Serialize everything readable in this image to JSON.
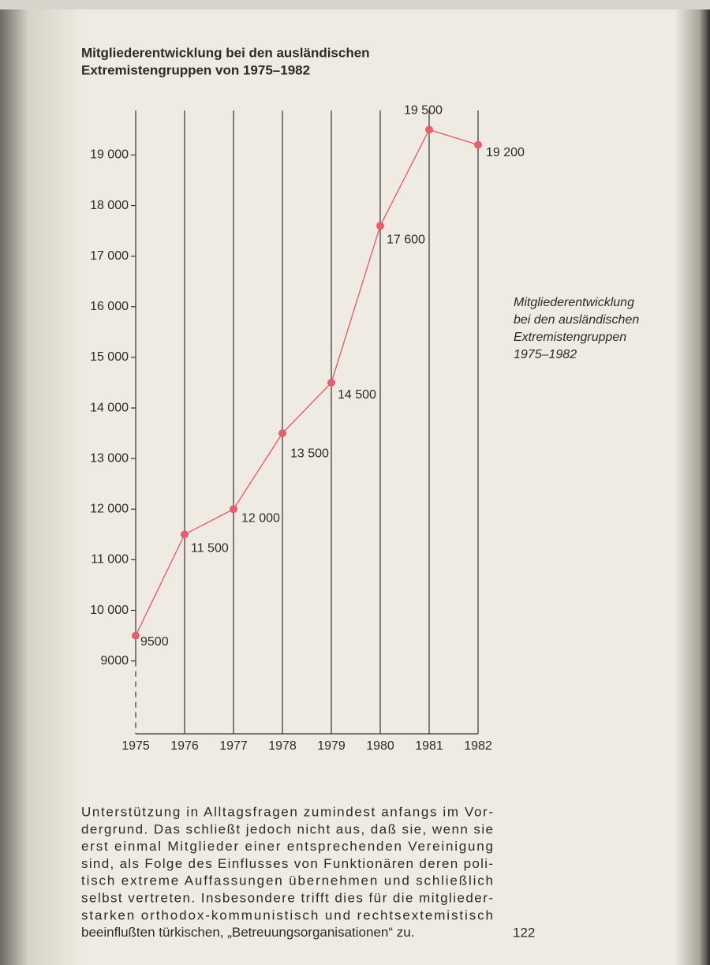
{
  "chart_data": {
    "type": "line",
    "title": [
      "Mitgliederentwicklung bei den ausländischen",
      "Extremistengruppen von 1975–1982"
    ],
    "x": [
      1975,
      1976,
      1977,
      1978,
      1979,
      1980,
      1981,
      1982
    ],
    "xlim": [
      1975,
      1982
    ],
    "values": [
      9500,
      11500,
      12000,
      13500,
      14500,
      17600,
      19500,
      19200
    ],
    "value_labels": [
      "9500",
      "11 500",
      "12 000",
      "13 500",
      "14 500",
      "17 600",
      "19 500",
      "19 200"
    ],
    "color": "#e2606e",
    "ylim": [
      7560,
      19880
    ],
    "yticks": [
      9000,
      {
        "value": 10000,
        "label": "10 000"
      },
      {
        "value": 11000,
        "label": "11 000"
      },
      {
        "value": 12000,
        "label": "12 000"
      },
      {
        "value": 13000,
        "label": "13 000"
      },
      {
        "value": 14000,
        "label": "14 000"
      },
      {
        "value": 15000,
        "label": "15 000"
      },
      {
        "value": 16000,
        "label": "16 000"
      },
      {
        "value": 17000,
        "label": "17 000"
      },
      {
        "value": 18000,
        "label": "18 000"
      },
      {
        "value": 19000,
        "label": "19 000"
      }
    ],
    "grid": true
  },
  "caption": [
    "Mitgliederentwicklung",
    "bei den ausländischen",
    "Extremistengruppen",
    "1975–1982"
  ],
  "body_text": [
    "Unterstützung in Alltagsfragen zumindest anfangs im Vor-",
    "dergrund. Das schließt jedoch nicht aus, daß sie, wenn sie",
    "erst einmal Mitglieder einer entsprechenden Vereinigung",
    "sind, als Folge des Einflusses von Funktionären deren poli-",
    "tisch extreme Auffassungen übernehmen und schließlich",
    "selbst vertreten. Insbesondere trifft dies für die mitglieder-",
    "starken orthodox-kommunistisch und rechtsextemistisch",
    "beeinflußten türkischen, „Betreuungsorganisationen“ zu."
  ],
  "page_number": "122"
}
